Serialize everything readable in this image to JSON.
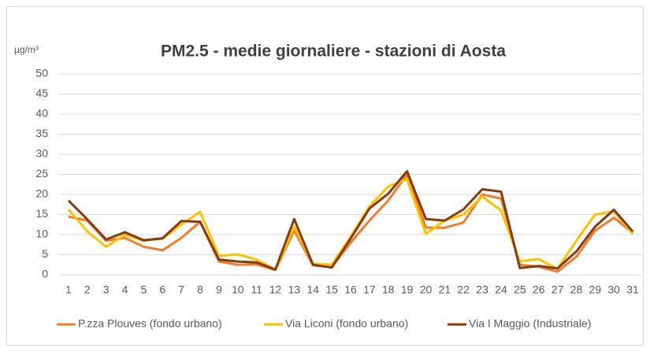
{
  "chart_data": {
    "type": "line",
    "title": "PM2.5 - medie giornaliere - stazioni di Aosta",
    "y_label": "µg/m³",
    "categories": [
      1,
      2,
      3,
      4,
      5,
      6,
      7,
      8,
      9,
      10,
      11,
      12,
      13,
      14,
      15,
      16,
      17,
      18,
      19,
      20,
      21,
      22,
      23,
      24,
      25,
      26,
      27,
      28,
      29,
      30,
      31
    ],
    "series": [
      {
        "name": "P.zza Plouves (fondo urbano)",
        "color": "#ed7d31",
        "values": [
          14.5,
          13.5,
          8.5,
          9.2,
          7,
          6.1,
          9.2,
          13.2,
          3.3,
          2.5,
          2.6,
          1.2,
          11,
          2.4,
          2,
          8,
          13.5,
          18.5,
          25,
          11.8,
          11.7,
          13,
          20,
          19,
          2.5,
          2,
          0.8,
          4.5,
          11,
          14.2,
          10.5
        ]
      },
      {
        "name": "Via Liconi (fondo urbano)",
        "color": "#ffc000",
        "values": [
          16.3,
          10.8,
          7,
          10,
          8.5,
          9,
          12.5,
          15.7,
          4.7,
          5.1,
          3.8,
          1.3,
          12,
          2.8,
          2.5,
          9.5,
          17,
          22,
          23.8,
          10.2,
          13.5,
          15,
          19.5,
          16,
          3.4,
          3.9,
          1.5,
          8.5,
          15,
          15.8,
          10.2
        ]
      },
      {
        "name": "Via I Maggio (Industriale)",
        "color": "#843c0c",
        "values": [
          18.5,
          13.8,
          8.8,
          10.6,
          8.6,
          9.1,
          13.4,
          13.2,
          3.8,
          3.3,
          3.1,
          1.3,
          13.9,
          2.5,
          1.8,
          9,
          16.5,
          20.2,
          25.8,
          13.9,
          13.5,
          16.3,
          21.3,
          20.7,
          1.7,
          2.2,
          1.6,
          5.8,
          12,
          16.2,
          10.8
        ]
      }
    ],
    "ylim": [
      0,
      50
    ],
    "yticks": [
      0,
      5,
      10,
      15,
      20,
      25,
      30,
      35,
      40,
      45,
      50
    ],
    "grid": true,
    "legend": "bottom"
  }
}
